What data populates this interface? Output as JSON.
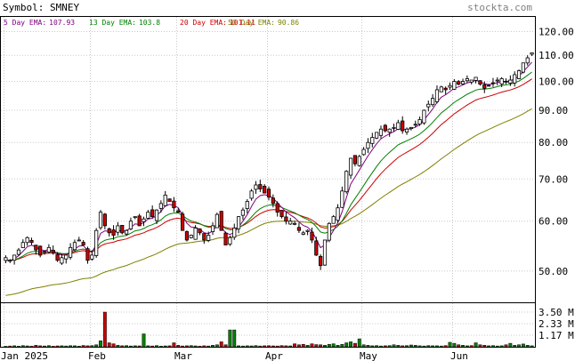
{
  "header": {
    "symbol_label": "Symbol: SMNEY",
    "brand": "stockta.com"
  },
  "legend": {
    "ema5": {
      "label": "5 Day EMA:",
      "value": "107.93",
      "color": "#800080"
    },
    "ema13": {
      "label": "13 Day EMA:",
      "value": "103.8",
      "color": "#008000"
    },
    "ema20": {
      "label": "20 Day EMA:",
      "value": "101.11",
      "color": "#cc0000"
    },
    "ema50": {
      "label": "50 Day EMA:",
      "value": "90.86",
      "color": "#808000"
    }
  },
  "colors": {
    "up": "#ffffff",
    "down": "#cc0000",
    "candle_outline": "#000000",
    "volume_up": "#008000",
    "volume_down": "#cc0000",
    "grid": "#c8c8c8"
  },
  "chart_data": {
    "type": "candlestick",
    "y_scale": "log",
    "price_ticks": [
      120,
      110,
      100,
      90,
      80,
      70,
      60,
      50
    ],
    "price_tick_labels": [
      "120.00",
      "110.00",
      "100.00",
      "90.00",
      "80.00",
      "70.00",
      "60.00",
      "50.00"
    ],
    "volume_ticks": [
      3.5,
      2.33,
      1.17
    ],
    "volume_tick_labels": [
      "3.50 M",
      "2.33 M",
      "1.17 M"
    ],
    "x_labels": [
      "Jan 2025",
      "Feb",
      "Mar",
      "Apr",
      "May",
      "Jun"
    ],
    "close": [
      52.5,
      52.0,
      53.0,
      54.0,
      55.5,
      56.5,
      55.5,
      54.0,
      53.0,
      53.5,
      54.5,
      53.5,
      52.0,
      52.5,
      53.0,
      54.5,
      55.5,
      56.0,
      55.0,
      52.0,
      53.0,
      58.0,
      62.0,
      59.0,
      57.5,
      57.0,
      59.0,
      57.5,
      58.0,
      60.0,
      61.0,
      59.0,
      60.5,
      62.0,
      61.0,
      62.5,
      64.0,
      66.0,
      64.5,
      63.0,
      62.0,
      58.0,
      56.0,
      57.0,
      58.5,
      57.5,
      56.0,
      57.0,
      59.0,
      61.5,
      58.0,
      55.0,
      56.5,
      58.5,
      61.0,
      62.5,
      64.5,
      67.0,
      68.5,
      67.5,
      66.5,
      65.5,
      64.0,
      62.0,
      61.0,
      60.0,
      60.0,
      59.5,
      58.0,
      57.5,
      58.0,
      56.0,
      53.0,
      51.0,
      56.0,
      59.5,
      61.0,
      63.0,
      67.0,
      72.0,
      75.5,
      74.0,
      76.0,
      78.0,
      80.0,
      81.5,
      83.0,
      84.0,
      83.5,
      84.0,
      84.5,
      86.0,
      83.5,
      84.0,
      84.5,
      85.5,
      87.0,
      90.0,
      92.0,
      94.0,
      97.0,
      98.0,
      97.0,
      98.5,
      100.0,
      99.0,
      100.0,
      101.0,
      100.5,
      101.5,
      99.0,
      97.5,
      98.5,
      99.5,
      100.5,
      101.0,
      100.0,
      100.5,
      102.5,
      104.0,
      107.0,
      109.0,
      111.0
    ],
    "volume_millions": [
      0.05,
      0.08,
      0.1,
      0.06,
      0.12,
      0.09,
      0.07,
      0.15,
      0.1,
      0.08,
      0.12,
      0.06,
      0.09,
      0.1,
      0.08,
      0.11,
      0.1,
      0.07,
      0.13,
      0.1,
      0.12,
      0.2,
      0.6,
      3.5,
      0.4,
      0.3,
      0.15,
      0.1,
      0.12,
      0.08,
      0.1,
      0.09,
      1.3,
      0.1,
      0.08,
      0.12,
      0.07,
      0.09,
      0.1,
      0.4,
      0.15,
      0.08,
      0.1,
      0.12,
      0.09,
      0.07,
      0.1,
      0.08,
      0.15,
      0.2,
      0.5,
      0.2,
      1.7,
      1.7,
      0.1,
      0.08,
      0.1,
      0.09,
      0.12,
      0.08,
      0.1,
      0.11,
      0.09,
      0.08,
      0.12,
      0.1,
      0.09,
      0.3,
      0.2,
      0.25,
      0.15,
      0.3,
      0.22,
      0.2,
      0.15,
      0.25,
      0.3,
      0.15,
      0.25,
      0.4,
      0.5,
      0.35,
      0.8,
      0.2,
      0.15,
      0.1,
      0.12,
      0.08,
      0.1,
      0.12,
      0.2,
      0.15,
      0.1,
      0.12,
      0.18,
      0.15,
      0.1,
      0.08,
      0.12,
      0.1,
      0.1,
      0.08,
      0.12,
      0.45,
      0.35,
      0.2,
      0.15,
      0.1,
      0.12,
      0.4,
      0.2,
      0.15,
      0.1,
      0.12,
      0.08,
      0.1,
      0.2,
      0.35,
      0.15,
      0.2,
      0.28,
      0.15,
      0.1
    ]
  }
}
